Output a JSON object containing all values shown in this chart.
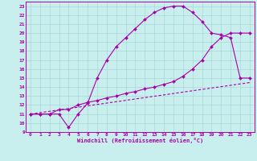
{
  "title": "",
  "xlabel": "Windchill (Refroidissement éolien,°C)",
  "ylabel": "",
  "bg_color": "#c8eeee",
  "grid_color": "#a8d8d8",
  "line_color": "#aa00aa",
  "xlim": [
    -0.5,
    23.5
  ],
  "ylim": [
    9,
    23.5
  ],
  "xticks": [
    0,
    1,
    2,
    3,
    4,
    5,
    6,
    7,
    8,
    9,
    10,
    11,
    12,
    13,
    14,
    15,
    16,
    17,
    18,
    19,
    20,
    21,
    22,
    23
  ],
  "yticks": [
    9,
    10,
    11,
    12,
    13,
    14,
    15,
    16,
    17,
    18,
    19,
    20,
    21,
    22,
    23
  ],
  "curve1_x": [
    0,
    1,
    2,
    3,
    4,
    5,
    6,
    7,
    8,
    9,
    10,
    11,
    12,
    13,
    14,
    15,
    16,
    17,
    18,
    19,
    20,
    21,
    22,
    23
  ],
  "curve1_y": [
    11,
    11,
    11,
    11,
    9.5,
    11,
    12.2,
    15,
    17,
    18.5,
    19.5,
    20.5,
    21.5,
    22.3,
    22.8,
    23.0,
    23.0,
    22.3,
    21.3,
    20.0,
    19.8,
    19.5,
    15.0,
    15.0
  ],
  "curve2_x": [
    0,
    1,
    2,
    3,
    4,
    5,
    6,
    7,
    8,
    9,
    10,
    11,
    12,
    13,
    14,
    15,
    16,
    17,
    18,
    19,
    20,
    21,
    22,
    23
  ],
  "curve2_y": [
    11,
    11,
    11.0,
    11.5,
    11.5,
    12.0,
    12.3,
    12.5,
    12.8,
    13.0,
    13.3,
    13.5,
    13.8,
    14.0,
    14.3,
    14.6,
    15.2,
    16.0,
    17.0,
    18.5,
    19.5,
    20.0,
    20.0,
    20.0
  ],
  "curve3_x": [
    0,
    23
  ],
  "curve3_y": [
    11,
    14.5
  ],
  "tick_fontsize": 4.5,
  "xlabel_fontsize": 5.0
}
